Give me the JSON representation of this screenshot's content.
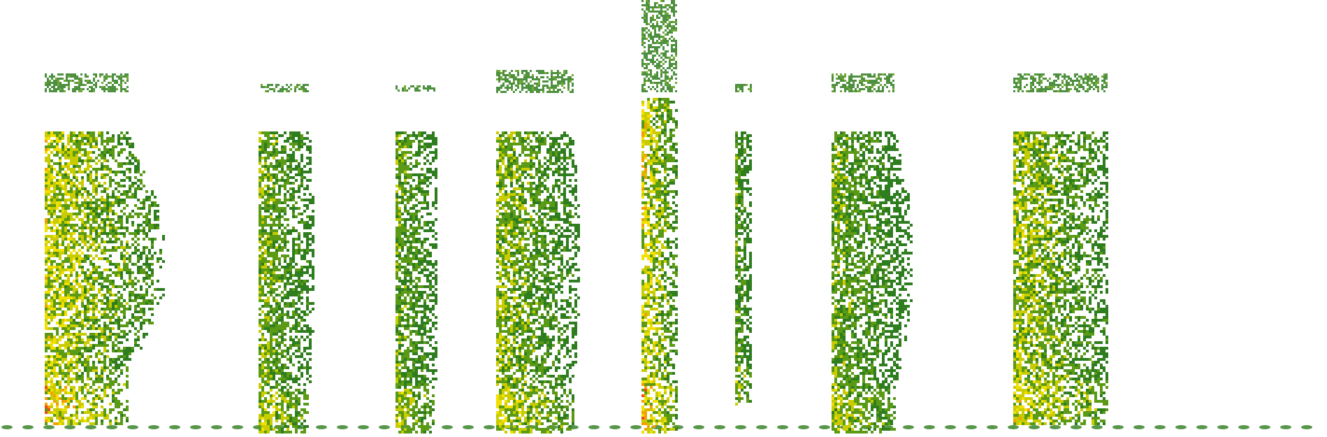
{
  "palette": {
    "background": "#ffffff",
    "low": "#2e7d1e",
    "mid_low": "#5a9a14",
    "mid": "#c8cc00",
    "mid_high": "#f2e000",
    "high": "#f4a000",
    "peak": "#ee4a1a"
  },
  "spectrogram": {
    "segments": [
      {
        "id": "seg-1",
        "intensity": 0.75,
        "shape": "wide"
      },
      {
        "id": "seg-2",
        "intensity": 0.55,
        "shape": "narrow"
      },
      {
        "id": "seg-3",
        "intensity": 0.5,
        "shape": "narrow"
      },
      {
        "id": "seg-4",
        "intensity": 0.6,
        "shape": "wide"
      },
      {
        "id": "seg-5",
        "intensity": 0.8,
        "shape": "narrow"
      },
      {
        "id": "seg-6",
        "intensity": 0.45,
        "shape": "thin"
      },
      {
        "id": "seg-7",
        "intensity": 0.5,
        "shape": "split"
      },
      {
        "id": "seg-8",
        "intensity": 0.65,
        "shape": "wide"
      }
    ]
  }
}
